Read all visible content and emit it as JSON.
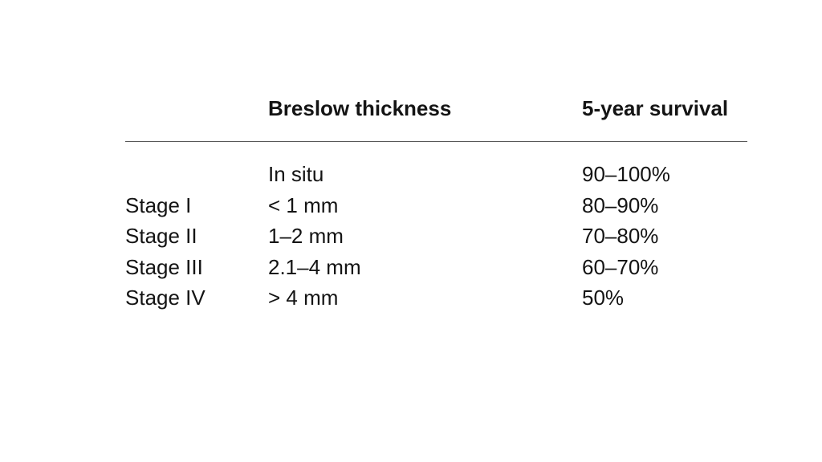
{
  "table": {
    "headers": {
      "stage": "",
      "thickness": "Breslow thickness",
      "survival": "5-year survival"
    },
    "rows": [
      {
        "stage": "",
        "thickness": "In situ",
        "survival": "90–100%"
      },
      {
        "stage": "Stage I",
        "thickness": "< 1 mm",
        "survival": "80–90%"
      },
      {
        "stage": "Stage II",
        "thickness": "1–2 mm",
        "survival": "70–80%"
      },
      {
        "stage": "Stage III",
        "thickness": "2.1–4 mm",
        "survival": "60–70%"
      },
      {
        "stage": "Stage IV",
        "thickness": "> 4 mm",
        "survival": "50%"
      }
    ]
  }
}
